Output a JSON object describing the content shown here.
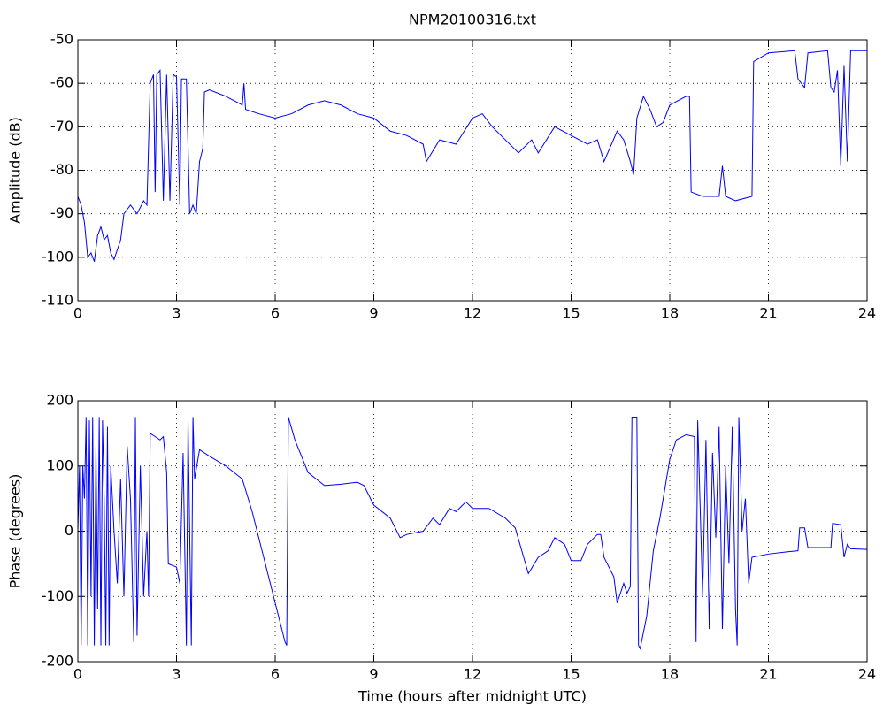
{
  "chart_data": [
    {
      "type": "line",
      "title": "NPM20100316.txt",
      "ylabel": "Amplitude (dB)",
      "xlim": [
        0,
        24
      ],
      "xticks": [
        0,
        3,
        6,
        9,
        12,
        15,
        18,
        21,
        24
      ],
      "ylim": [
        -110,
        -50
      ],
      "yticks": [
        -110,
        -100,
        -90,
        -80,
        -70,
        -60,
        -50
      ],
      "grid": true,
      "x": [
        0,
        0.1,
        0.2,
        0.3,
        0.4,
        0.5,
        0.6,
        0.7,
        0.8,
        0.9,
        1.0,
        1.1,
        1.3,
        1.4,
        1.5,
        1.6,
        1.8,
        2.0,
        2.1,
        2.2,
        2.3,
        2.35,
        2.4,
        2.5,
        2.6,
        2.7,
        2.8,
        2.9,
        3.0,
        3.1,
        3.15,
        3.3,
        3.4,
        3.5,
        3.6,
        3.7,
        3.8,
        3.85,
        4.0,
        4.5,
        5.0,
        5.05,
        5.1,
        5.5,
        6.0,
        6.5,
        7.0,
        7.5,
        8.0,
        8.5,
        9.0,
        9.5,
        10.0,
        10.5,
        10.6,
        11.0,
        11.5,
        12.0,
        12.3,
        12.6,
        13.0,
        13.4,
        13.8,
        14.0,
        14.5,
        15.0,
        15.5,
        15.8,
        16.0,
        16.4,
        16.6,
        16.8,
        16.9,
        17.0,
        17.2,
        17.4,
        17.6,
        17.8,
        18.0,
        18.5,
        18.6,
        18.65,
        19.0,
        19.5,
        19.6,
        19.7,
        20.0,
        20.5,
        20.55,
        21.0,
        21.8,
        21.9,
        22.1,
        22.2,
        22.8,
        22.9,
        23.0,
        23.1,
        23.2,
        23.3,
        23.4,
        23.5,
        24
      ],
      "series": [
        {
          "name": "Amplitude",
          "color": "#0000ff",
          "values": [
            -86,
            -88,
            -92,
            -100,
            -99,
            -101,
            -95,
            -93,
            -96,
            -95,
            -99,
            -100.5,
            -96,
            -90,
            -89,
            -88,
            -90,
            -87,
            -88,
            -60,
            -58,
            -85,
            -58,
            -57,
            -87,
            -58,
            -87,
            -58,
            -58.5,
            -88,
            -59,
            -59,
            -90,
            -88,
            -90,
            -78,
            -75,
            -62,
            -61.5,
            -63,
            -65,
            -60,
            -66,
            -67,
            -68,
            -67,
            -65,
            -64,
            -65,
            -67,
            -68,
            -71,
            -72,
            -74,
            -78,
            -73,
            -74,
            -68,
            -67,
            -70,
            -73,
            -76,
            -73,
            -76,
            -70,
            -72,
            -74,
            -73,
            -78,
            -71,
            -73,
            -78,
            -81,
            -68,
            -63,
            -66,
            -70,
            -69,
            -65,
            -63,
            -63,
            -85,
            -86,
            -86,
            -79,
            -86,
            -87,
            -86,
            -55,
            -53,
            -52.5,
            -59,
            -61,
            -53,
            -52.5,
            -61,
            -62,
            -57,
            -79,
            -56,
            -78,
            -52.5,
            -52.5
          ]
        }
      ]
    },
    {
      "type": "line",
      "ylabel": "Phase (degrees)",
      "xlabel": "Time (hours after midnight UTC)",
      "xlim": [
        0,
        24
      ],
      "xticks": [
        0,
        3,
        6,
        9,
        12,
        15,
        18,
        21,
        24
      ],
      "ylim": [
        -200,
        200
      ],
      "yticks": [
        -200,
        -100,
        0,
        100,
        200
      ],
      "grid": true,
      "x": [
        0,
        0.05,
        0.1,
        0.15,
        0.2,
        0.25,
        0.3,
        0.35,
        0.4,
        0.45,
        0.5,
        0.55,
        0.6,
        0.65,
        0.7,
        0.75,
        0.8,
        0.85,
        0.9,
        0.95,
        1.0,
        1.1,
        1.2,
        1.3,
        1.4,
        1.5,
        1.6,
        1.7,
        1.75,
        1.8,
        1.9,
        2.0,
        2.1,
        2.15,
        2.2,
        2.5,
        2.6,
        2.7,
        2.75,
        3.0,
        3.1,
        3.2,
        3.3,
        3.35,
        3.45,
        3.5,
        3.55,
        3.7,
        4.0,
        4.5,
        5.0,
        5.3,
        5.7,
        6.0,
        6.3,
        6.35,
        6.4,
        6.6,
        7.0,
        7.5,
        8.0,
        8.5,
        8.7,
        9.0,
        9.5,
        9.8,
        10.0,
        10.5,
        10.8,
        11.0,
        11.3,
        11.5,
        11.8,
        12.0,
        12.5,
        13.0,
        13.3,
        13.5,
        13.7,
        14.0,
        14.3,
        14.5,
        14.8,
        15.0,
        15.3,
        15.5,
        15.8,
        15.9,
        16.0,
        16.3,
        16.4,
        16.6,
        16.7,
        16.8,
        16.85,
        17.0,
        17.05,
        17.1,
        17.3,
        17.5,
        17.7,
        18.0,
        18.2,
        18.5,
        18.75,
        18.8,
        18.85,
        19.0,
        19.1,
        19.2,
        19.3,
        19.4,
        19.5,
        19.6,
        19.7,
        19.8,
        19.9,
        20.0,
        20.05,
        20.1,
        20.2,
        20.3,
        20.4,
        20.5,
        21.0,
        21.5,
        21.9,
        21.95,
        22.1,
        22.2,
        22.9,
        22.95,
        23.2,
        23.3,
        23.4,
        23.5,
        24
      ],
      "series": [
        {
          "name": "Phase",
          "color": "#0000ff",
          "values": [
            0,
            100,
            -175,
            100,
            50,
            175,
            -175,
            170,
            -100,
            175,
            -175,
            130,
            -120,
            175,
            -175,
            170,
            50,
            -175,
            160,
            -175,
            100,
            0,
            -80,
            80,
            -100,
            130,
            50,
            -170,
            175,
            -160,
            100,
            -100,
            0,
            -100,
            150,
            140,
            145,
            90,
            -50,
            -55,
            -80,
            120,
            -175,
            170,
            -175,
            175,
            80,
            125,
            115,
            100,
            80,
            30,
            -50,
            -110,
            -170,
            -175,
            175,
            140,
            90,
            70,
            72,
            75,
            70,
            40,
            20,
            -10,
            -5,
            0,
            20,
            10,
            35,
            30,
            45,
            35,
            35,
            20,
            5,
            -30,
            -65,
            -40,
            -30,
            -10,
            -20,
            -45,
            -45,
            -20,
            -5,
            -5,
            -40,
            -70,
            -110,
            -80,
            -95,
            -85,
            175,
            175,
            -175,
            -180,
            -130,
            -30,
            20,
            110,
            140,
            148,
            145,
            -170,
            170,
            -100,
            140,
            -150,
            120,
            -10,
            160,
            -150,
            100,
            -50,
            160,
            -120,
            -175,
            175,
            0,
            50,
            -80,
            -40,
            -35,
            -32,
            -30,
            5,
            5,
            -25,
            -25,
            12,
            10,
            -40,
            -20,
            -27,
            -28
          ]
        }
      ]
    }
  ]
}
